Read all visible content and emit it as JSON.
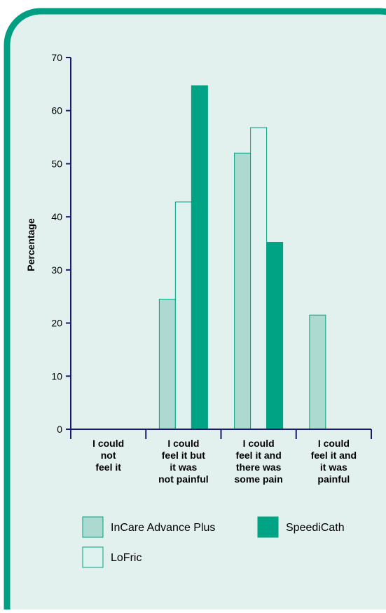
{
  "chart_data": {
    "type": "bar",
    "title": "",
    "xlabel": "",
    "ylabel": "Percentage",
    "ylim": [
      0,
      70
    ],
    "yticks": [
      0,
      10,
      20,
      30,
      40,
      50,
      60,
      70
    ],
    "categories": [
      [
        "I could",
        "not",
        "feel it"
      ],
      [
        "I could",
        "feel it but",
        "it was",
        "not painful"
      ],
      [
        "I could",
        "feel it and",
        "there was",
        "some pain"
      ],
      [
        "I could",
        "feel it and",
        "it was",
        "painful"
      ]
    ],
    "series": [
      {
        "name": "InCare Advance Plus",
        "values": [
          0,
          24.5,
          52,
          21.5
        ]
      },
      {
        "name": "LoFric",
        "values": [
          0,
          42.8,
          56.8,
          0
        ]
      },
      {
        "name": "SpeediCath",
        "values": [
          0,
          64.7,
          35.2,
          0
        ]
      }
    ],
    "legend_position": "bottom"
  },
  "colors": {
    "panel_border": "#009e83",
    "panel_fill": "#e2f1ee",
    "axis": "#1a1a6e",
    "series": [
      "#acd9d0",
      "#dff2ef",
      "#00a383"
    ],
    "bar_stroke": "#00a383"
  }
}
